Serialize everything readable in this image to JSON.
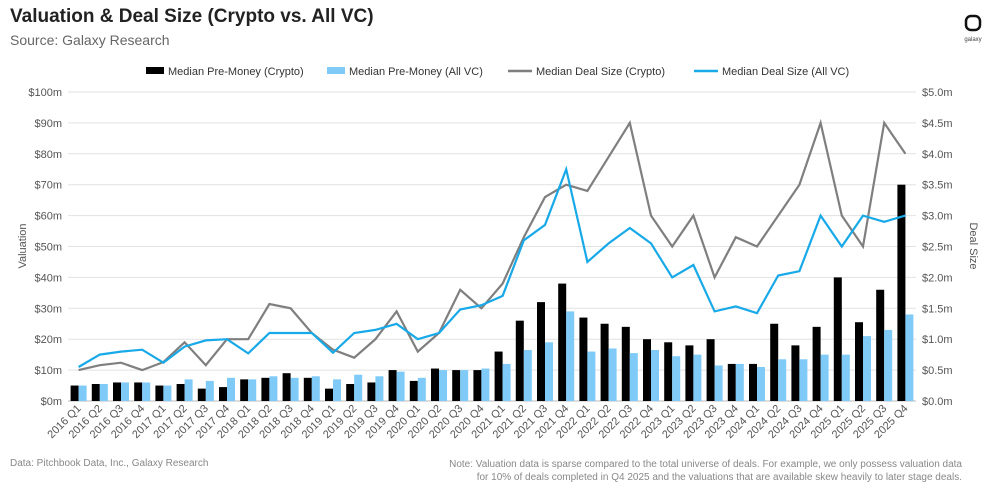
{
  "header": {
    "title": "Valuation & Deal Size (Crypto vs. All VC)",
    "subtitle": "Source: Galaxy Research",
    "logo_text": "galaxy"
  },
  "footer": {
    "source": "Data: Pitchbook Data, Inc., Galaxy Research",
    "note": "Note: Valuation data is sparse compared to the total universe of deals. For example, we only possess valuation data for 10% of deals completed in Q4 2025 and the valuations that are available skew heavily to later stage deals."
  },
  "colors": {
    "crypto_bar": "#000000",
    "allvc_bar": "#7fcaf7",
    "crypto_line": "#7f7f7f",
    "allvc_line": "#18a9e8"
  },
  "chart_data": {
    "type": "bar+line",
    "ylabel": "Valuation",
    "y2label": "Deal Size",
    "ylim": [
      0,
      100
    ],
    "y2lim": [
      0,
      5
    ],
    "yticks": [
      "$0m",
      "$10m",
      "$20m",
      "$30m",
      "$40m",
      "$50m",
      "$60m",
      "$70m",
      "$80m",
      "$90m",
      "$100m"
    ],
    "y2ticks": [
      "$0.0m",
      "$0.5m",
      "$1.0m",
      "$1.5m",
      "$2.0m",
      "$2.5m",
      "$3.0m",
      "$3.5m",
      "$4.0m",
      "$4.5m",
      "$5.0m"
    ],
    "grid": true,
    "legend": "top",
    "categories": [
      "2016 Q1",
      "2016 Q2",
      "2016 Q3",
      "2016 Q4",
      "2017 Q1",
      "2017 Q2",
      "2017 Q3",
      "2017 Q4",
      "2018 Q1",
      "2018 Q2",
      "2018 Q3",
      "2018 Q4",
      "2019 Q1",
      "2019 Q2",
      "2019 Q3",
      "2019 Q4",
      "2020 Q1",
      "2020 Q2",
      "2020 Q3",
      "2020 Q4",
      "2021 Q1",
      "2021 Q2",
      "2021 Q3",
      "2021 Q4",
      "2022 Q1",
      "2022 Q2",
      "2022 Q3",
      "2022 Q4",
      "2023 Q1",
      "2023 Q2",
      "2023 Q3",
      "2023 Q4",
      "2024 Q1",
      "2024 Q2",
      "2024 Q3",
      "2024 Q4",
      "2025 Q1",
      "2025 Q2",
      "2025 Q3",
      "2025 Q4"
    ],
    "series": [
      {
        "name": "Median Pre-Money (Crypto)",
        "type": "bar",
        "axis": "left",
        "values": [
          5,
          5.5,
          6,
          6,
          5,
          5.5,
          4,
          4.5,
          7,
          7.5,
          9,
          7.5,
          4,
          5.5,
          6,
          10,
          6.5,
          10.5,
          10,
          10,
          16,
          26,
          32,
          38,
          27,
          25,
          24,
          20,
          19,
          18,
          20,
          12,
          12,
          25,
          18,
          24,
          40,
          25.5,
          36,
          70
        ]
      },
      {
        "name": "Median Pre-Money (All VC)",
        "type": "bar",
        "axis": "left",
        "values": [
          5,
          5.5,
          6,
          6,
          5,
          7,
          6.5,
          7.5,
          7,
          8,
          7.5,
          8,
          7,
          8.5,
          8,
          9.5,
          7.5,
          10,
          10,
          10.5,
          12,
          16.5,
          19,
          29,
          16,
          17,
          15.5,
          16.5,
          14.5,
          15,
          11.5,
          12,
          11,
          13.5,
          13.5,
          15,
          15,
          21,
          23,
          28
        ]
      },
      {
        "name": "Median Deal Size (Crypto)",
        "type": "line",
        "axis": "right",
        "values": [
          0.5,
          0.58,
          0.62,
          0.5,
          0.63,
          0.95,
          0.58,
          1.0,
          1.0,
          1.57,
          1.5,
          1.1,
          0.83,
          0.7,
          1.0,
          1.45,
          0.8,
          1.1,
          1.8,
          1.5,
          1.9,
          2.65,
          3.3,
          3.5,
          3.4,
          3.95,
          4.5,
          3.0,
          2.5,
          3.0,
          2.0,
          2.65,
          2.5,
          3.0,
          3.5,
          4.5,
          3.0,
          2.5,
          4.5,
          4.0
        ]
      },
      {
        "name": "Median Deal Size (All VC)",
        "type": "line",
        "axis": "right",
        "values": [
          0.55,
          0.75,
          0.8,
          0.83,
          0.62,
          0.88,
          0.98,
          1.0,
          0.77,
          1.1,
          1.1,
          1.1,
          0.78,
          1.1,
          1.15,
          1.25,
          1.0,
          1.1,
          1.48,
          1.55,
          1.7,
          2.6,
          2.85,
          3.75,
          2.25,
          2.55,
          2.8,
          2.55,
          2.0,
          2.2,
          1.45,
          1.53,
          1.42,
          2.03,
          2.1,
          3.0,
          2.5,
          3.0,
          2.9,
          3.0
        ]
      }
    ]
  }
}
